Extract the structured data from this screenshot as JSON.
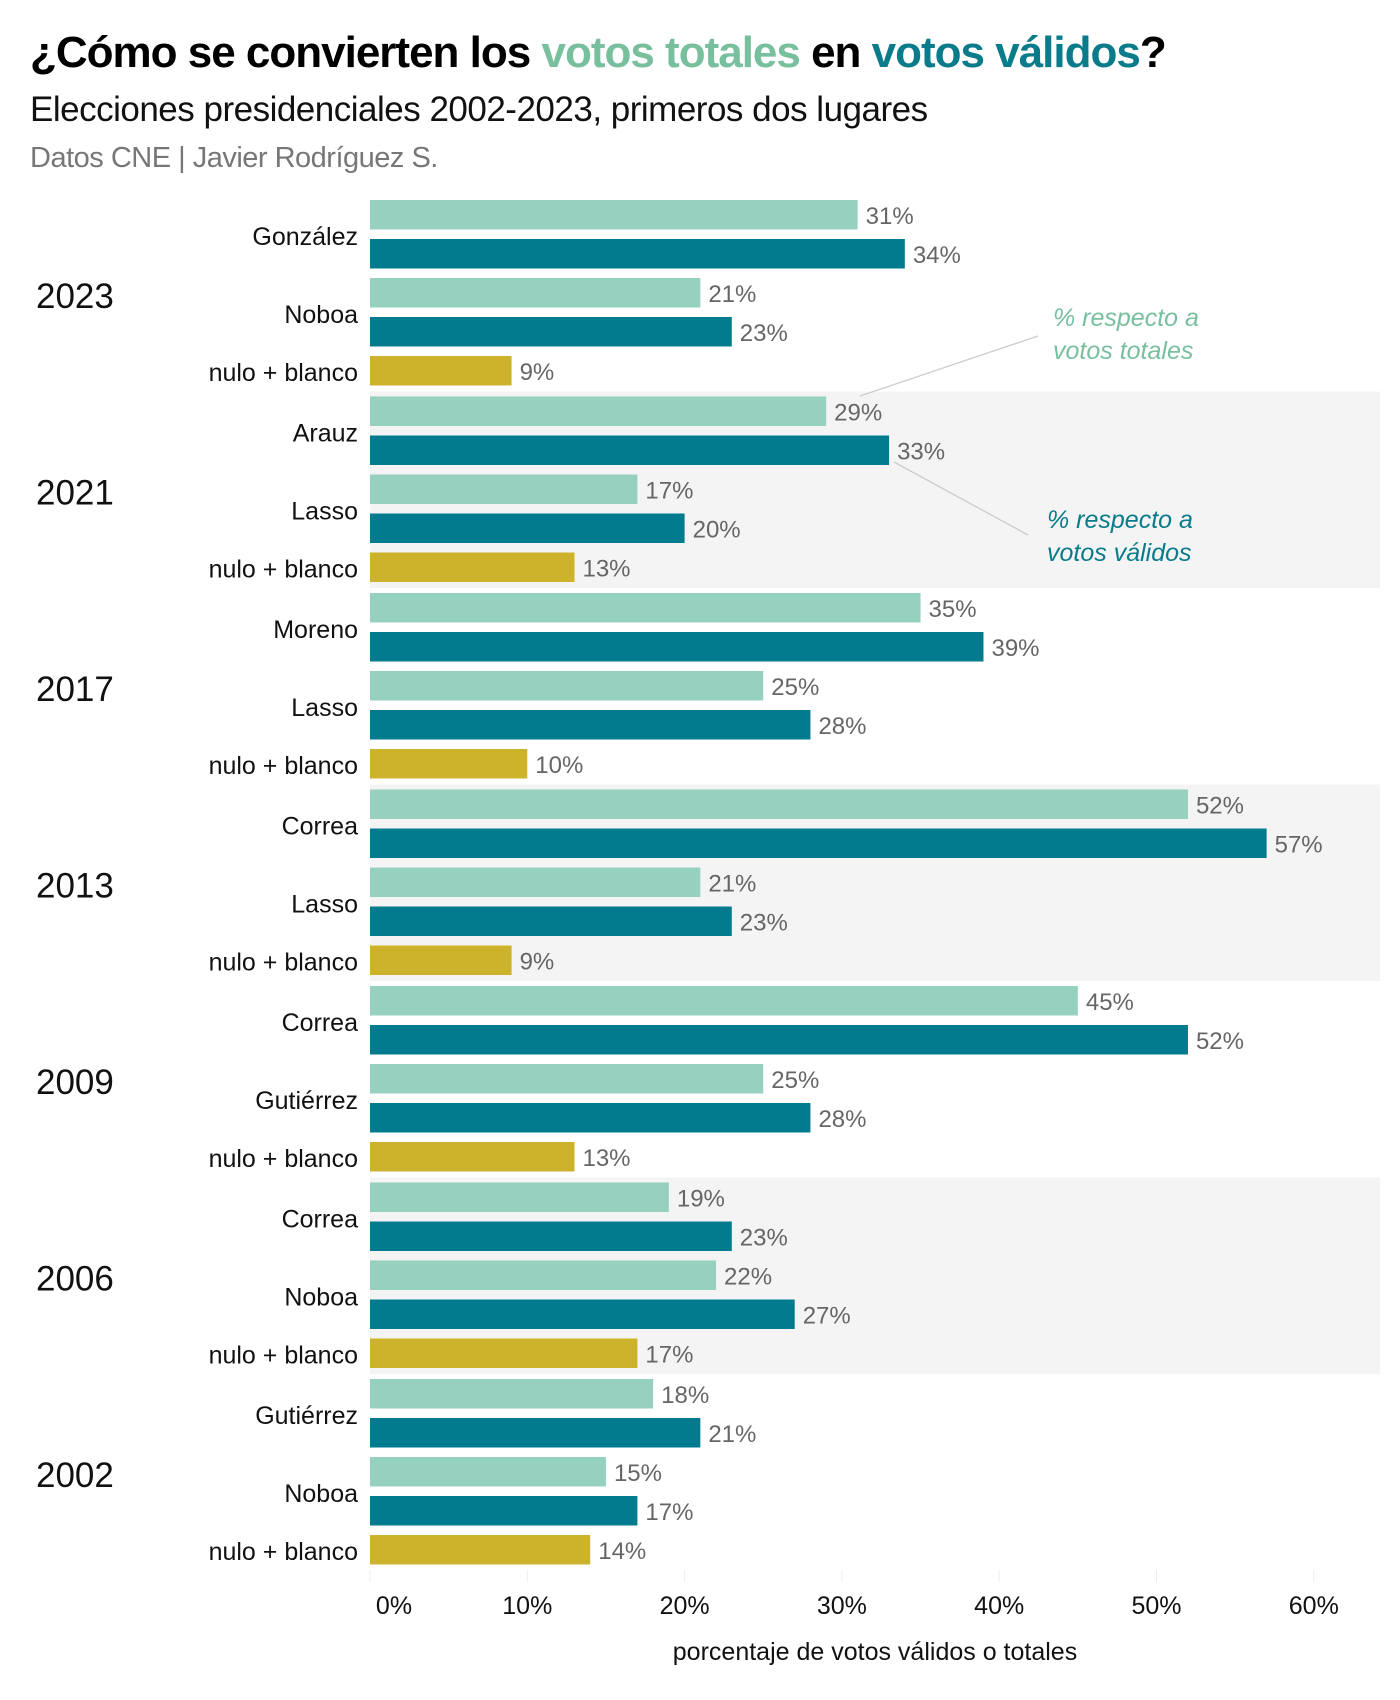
{
  "title": {
    "pre": "¿Cómo se convierten los ",
    "hl1": "votos totales",
    "mid": " en ",
    "hl2": "votos válidos",
    "post": "?"
  },
  "subtitle": "Elecciones presidenciales 2002-2023, primeros dos lugares",
  "source": "Datos CNE | Javier Rodríguez S.",
  "colors": {
    "totales": "#96d1c0",
    "validos": "#027b8e",
    "nulo": "#cdb32c",
    "title_totales": "#78bf9e",
    "title_validos": "#0a7b8a",
    "band": "#f4f4f4"
  },
  "annotations": [
    {
      "lines": [
        "% respecto a",
        "votos totales"
      ],
      "series": "totales"
    },
    {
      "lines": [
        "% respecto a",
        "votos válidos"
      ],
      "series": "validos"
    }
  ],
  "chart_data": {
    "type": "bar",
    "orientation": "horizontal",
    "xlabel": "porcentaje de votos válidos o totales",
    "xlim": [
      0,
      64
    ],
    "xticks": [
      "0%",
      "10%",
      "20%",
      "30%",
      "40%",
      "50%",
      "60%"
    ],
    "series_names": [
      "% respecto a votos totales",
      "% respecto a votos válidos",
      "nulo + blanco"
    ],
    "groups": [
      {
        "year": "2023",
        "c1": "González",
        "c1_tot": 31,
        "c1_val": 34,
        "c2": "Noboa",
        "c2_tot": 21,
        "c2_val": 23,
        "nulo_label": "nulo + blanco",
        "nulo": 9
      },
      {
        "year": "2021",
        "c1": "Arauz",
        "c1_tot": 29,
        "c1_val": 33,
        "c2": "Lasso",
        "c2_tot": 17,
        "c2_val": 20,
        "nulo_label": "nulo + blanco",
        "nulo": 13
      },
      {
        "year": "2017",
        "c1": "Moreno",
        "c1_tot": 35,
        "c1_val": 39,
        "c2": "Lasso",
        "c2_tot": 25,
        "c2_val": 28,
        "nulo_label": "nulo + blanco",
        "nulo": 10
      },
      {
        "year": "2013",
        "c1": "Correa",
        "c1_tot": 52,
        "c1_val": 57,
        "c2": "Lasso",
        "c2_tot": 21,
        "c2_val": 23,
        "nulo_label": "nulo + blanco",
        "nulo": 9
      },
      {
        "year": "2009",
        "c1": "Correa",
        "c1_tot": 45,
        "c1_val": 52,
        "c2": "Gutiérrez",
        "c2_tot": 25,
        "c2_val": 28,
        "nulo_label": "nulo + blanco",
        "nulo": 13
      },
      {
        "year": "2006",
        "c1": "Correa",
        "c1_tot": 19,
        "c1_val": 23,
        "c2": "Noboa",
        "c2_tot": 22,
        "c2_val": 27,
        "nulo_label": "nulo + blanco",
        "nulo": 17
      },
      {
        "year": "2002",
        "c1": "Gutiérrez",
        "c1_tot": 18,
        "c1_val": 21,
        "c2": "Noboa",
        "c2_tot": 15,
        "c2_val": 17,
        "nulo_label": "nulo + blanco",
        "nulo": 14
      }
    ]
  }
}
